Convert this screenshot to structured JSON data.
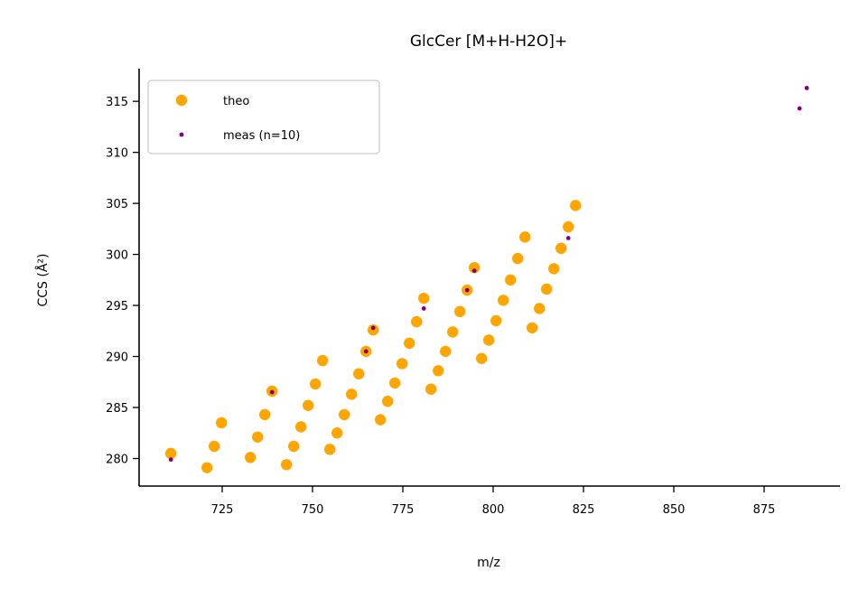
{
  "chart_data": {
    "type": "scatter",
    "title": "GlcCer [M+H-H2O]+",
    "xlabel": "m/z",
    "ylabel": "CCS (Å²)",
    "xlim": [
      702,
      896
    ],
    "ylim": [
      277.3,
      318.2
    ],
    "xticks": [
      725,
      750,
      775,
      800,
      825,
      850,
      875
    ],
    "yticks": [
      280,
      285,
      290,
      295,
      300,
      305,
      310,
      315
    ],
    "grid": false,
    "legend": {
      "position": "top-left",
      "entries": [
        "theo",
        "meas (n=10)"
      ]
    },
    "series": [
      {
        "name": "theo",
        "color": "#FFA500",
        "marker": "large-dot",
        "points": [
          [
            710.8,
            280.5
          ],
          [
            720.8,
            279.1
          ],
          [
            722.8,
            281.2
          ],
          [
            724.8,
            283.5
          ],
          [
            732.8,
            280.1
          ],
          [
            734.8,
            282.1
          ],
          [
            736.8,
            284.3
          ],
          [
            738.8,
            286.6
          ],
          [
            742.8,
            279.4
          ],
          [
            744.8,
            281.2
          ],
          [
            746.8,
            283.1
          ],
          [
            748.8,
            285.2
          ],
          [
            750.8,
            287.3
          ],
          [
            752.8,
            289.6
          ],
          [
            754.8,
            280.9
          ],
          [
            756.8,
            282.5
          ],
          [
            758.8,
            284.3
          ],
          [
            760.8,
            286.3
          ],
          [
            762.8,
            288.3
          ],
          [
            764.8,
            290.5
          ],
          [
            766.8,
            292.6
          ],
          [
            768.8,
            283.8
          ],
          [
            770.8,
            285.6
          ],
          [
            772.8,
            287.4
          ],
          [
            774.8,
            289.3
          ],
          [
            776.8,
            291.3
          ],
          [
            778.8,
            293.4
          ],
          [
            780.8,
            295.7
          ],
          [
            782.8,
            286.8
          ],
          [
            784.8,
            288.6
          ],
          [
            786.8,
            290.5
          ],
          [
            788.8,
            292.4
          ],
          [
            790.8,
            294.4
          ],
          [
            792.8,
            296.5
          ],
          [
            794.8,
            298.7
          ],
          [
            796.8,
            289.8
          ],
          [
            798.8,
            291.6
          ],
          [
            800.8,
            293.5
          ],
          [
            802.8,
            295.5
          ],
          [
            804.8,
            297.5
          ],
          [
            806.8,
            299.6
          ],
          [
            808.8,
            301.7
          ],
          [
            810.8,
            292.8
          ],
          [
            812.8,
            294.7
          ],
          [
            814.8,
            296.6
          ],
          [
            816.8,
            298.6
          ],
          [
            818.8,
            300.6
          ],
          [
            820.8,
            302.7
          ],
          [
            822.8,
            304.8
          ]
        ]
      },
      {
        "name": "meas (n=10)",
        "color": "#800080",
        "marker": "small-dot",
        "points": [
          [
            710.8,
            279.9
          ],
          [
            738.8,
            286.5
          ],
          [
            764.8,
            290.5
          ],
          [
            766.8,
            292.8
          ],
          [
            780.8,
            294.7
          ],
          [
            792.8,
            296.5
          ],
          [
            794.8,
            298.4
          ],
          [
            820.8,
            301.6
          ],
          [
            884.8,
            314.3
          ],
          [
            886.8,
            316.3
          ]
        ]
      }
    ]
  }
}
